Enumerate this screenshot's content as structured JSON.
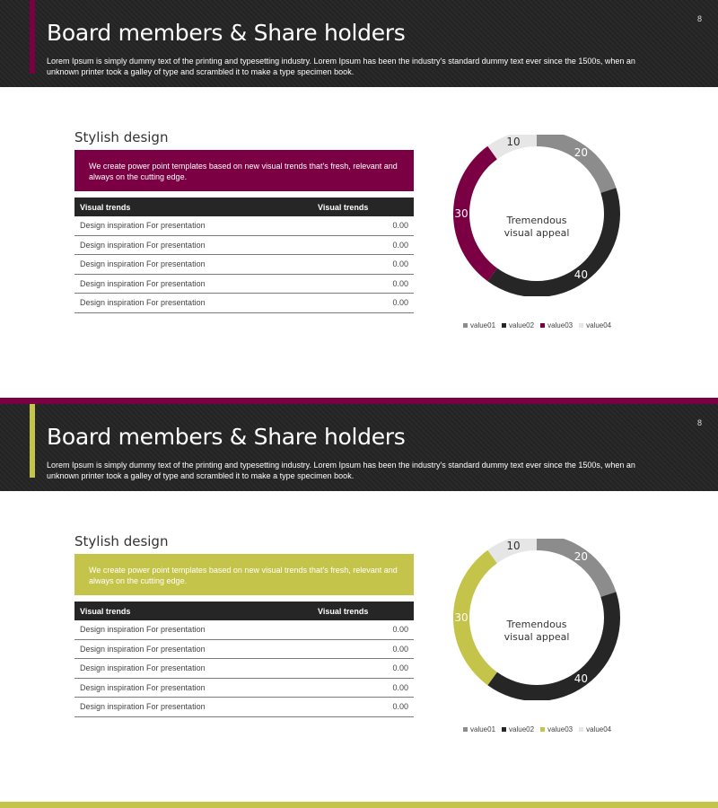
{
  "slides": [
    {
      "page_number": "8",
      "title": "Board members & Share holders",
      "subtitle": "Lorem Ipsum is simply dummy text of the printing and typesetting industry. Lorem Ipsum has been the industry's standard dummy text ever since the 1500s, when an unknown printer took a galley of type and scrambled it to make a type specimen book.",
      "accent_color": "#7a0043",
      "section_heading": "Stylish design",
      "intro_text": "We create power point templates based on new visual trends that's fresh, relevant and always on the cutting edge.",
      "table": {
        "headers": [
          "Visual trends",
          "Visual trends"
        ],
        "rows": [
          [
            "Design inspiration For presentation",
            "0.00"
          ],
          [
            "Design inspiration For presentation",
            "0.00"
          ],
          [
            "Design inspiration For presentation",
            "0.00"
          ],
          [
            "Design inspiration For presentation",
            "0.00"
          ],
          [
            "Design inspiration For presentation",
            "0.00"
          ]
        ]
      },
      "chart_data": {
        "type": "pie",
        "donut": true,
        "center_label_line1": "Tremendous",
        "center_label_line2": "visual appeal",
        "labels": [
          "value01",
          "value02",
          "value03",
          "value04"
        ],
        "values": [
          20,
          40,
          30,
          10
        ],
        "data_labels": [
          "20",
          "40",
          "30",
          "10"
        ],
        "colors": [
          "#8c8c8c",
          "#262626",
          "#7a0043",
          "#e6e6e6"
        ],
        "legend_position": "bottom"
      }
    },
    {
      "page_number": "8",
      "title": "Board members & Share holders",
      "subtitle": "Lorem Ipsum is simply dummy text of the printing and typesetting industry. Lorem Ipsum has been the industry's standard dummy text ever since the 1500s, when an unknown printer took a galley of type and scrambled it to make a type specimen book.",
      "accent_color": "#c5c44a",
      "section_heading": "Stylish design",
      "intro_text": "We create power point templates based on new visual trends that's fresh, relevant and always on the cutting edge.",
      "table": {
        "headers": [
          "Visual trends",
          "Visual trends"
        ],
        "rows": [
          [
            "Design inspiration For presentation",
            "0.00"
          ],
          [
            "Design inspiration For presentation",
            "0.00"
          ],
          [
            "Design inspiration For presentation",
            "0.00"
          ],
          [
            "Design inspiration For presentation",
            "0.00"
          ],
          [
            "Design inspiration For presentation",
            "0.00"
          ]
        ]
      },
      "chart_data": {
        "type": "pie",
        "donut": true,
        "center_label_line1": "Tremendous",
        "center_label_line2": "visual appeal",
        "labels": [
          "value01",
          "value02",
          "value03",
          "value04"
        ],
        "values": [
          20,
          40,
          30,
          10
        ],
        "data_labels": [
          "20",
          "40",
          "30",
          "10"
        ],
        "colors": [
          "#8c8c8c",
          "#262626",
          "#c5c44a",
          "#e6e6e6"
        ],
        "legend_position": "bottom"
      }
    }
  ]
}
